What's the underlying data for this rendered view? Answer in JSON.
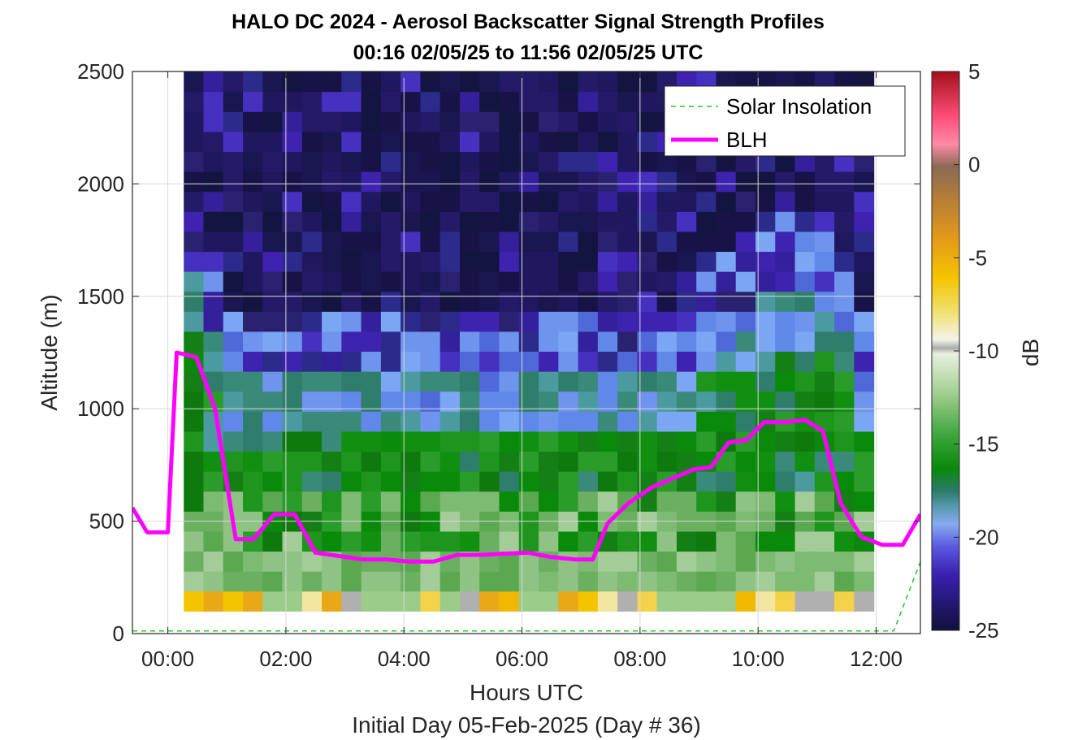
{
  "chart_data": {
    "type": "heatmap",
    "title": "HALO DC 2024 - Aerosol Backscatter Signal Strength Profiles",
    "subtitle": "00:16 02/05/25 to 11:56 02/05/25  UTC",
    "xlabel": "Hours UTC",
    "xlabel2": "Initial Day 05-Feb-2025 (Day # 36)",
    "ylabel": "Altitude (m)",
    "colorbar_label": "dB",
    "xlim": [
      -0.6,
      12.75
    ],
    "ylim": [
      0,
      2500
    ],
    "clim": [
      -25,
      5
    ],
    "x_ticks": [
      0,
      2,
      4,
      6,
      8,
      10,
      12
    ],
    "x_tick_labels": [
      "00:00",
      "02:00",
      "04:00",
      "06:00",
      "08:00",
      "10:00",
      "12:00"
    ],
    "y_ticks": [
      0,
      500,
      1000,
      1500,
      2000,
      2500
    ],
    "y_tick_labels": [
      "0",
      "500",
      "1000",
      "1500",
      "2000",
      "2500"
    ],
    "colorbar_ticks": [
      5,
      0,
      -5,
      -10,
      -15,
      -20,
      -25
    ],
    "colorbar_tick_labels": [
      "5",
      "0",
      "-5",
      "-10",
      "-15",
      "-20",
      "-25"
    ],
    "grid": true,
    "legend_position": "top-right",
    "legend": [
      {
        "name": "Solar Insolation",
        "style": "dashed",
        "color": "#22cc22"
      },
      {
        "name": "BLH",
        "style": "solid",
        "color": "#ff00ff"
      }
    ],
    "heatmap": {
      "x_start": 0.27,
      "x_end": 11.96,
      "columns": 35,
      "y_bottom": 100,
      "y_top": 2500,
      "rows": 27
    },
    "series": [
      {
        "name": "BLH",
        "color": "#ff00ff",
        "x": [
          -0.6,
          -0.35,
          0.0,
          0.15,
          0.48,
          0.8,
          1.15,
          1.45,
          1.8,
          2.15,
          2.5,
          2.9,
          3.3,
          3.7,
          4.1,
          4.5,
          4.9,
          5.3,
          5.7,
          6.1,
          6.5,
          6.9,
          7.2,
          7.45,
          7.8,
          8.2,
          8.55,
          8.9,
          9.2,
          9.5,
          9.8,
          10.1,
          10.45,
          10.8,
          11.1,
          11.4,
          11.75,
          12.1,
          12.45,
          12.75
        ],
        "values": [
          560,
          450,
          450,
          1250,
          1230,
          1000,
          420,
          420,
          530,
          530,
          360,
          345,
          330,
          330,
          320,
          320,
          350,
          350,
          355,
          360,
          340,
          330,
          330,
          490,
          580,
          650,
          690,
          730,
          740,
          850,
          860,
          940,
          940,
          950,
          900,
          580,
          430,
          395,
          395,
          530
        ]
      },
      {
        "name": "Solar Insolation",
        "color": "#22cc22",
        "x": [
          -0.6,
          12.3,
          12.75
        ],
        "values": [
          12,
          12,
          320
        ]
      }
    ]
  }
}
